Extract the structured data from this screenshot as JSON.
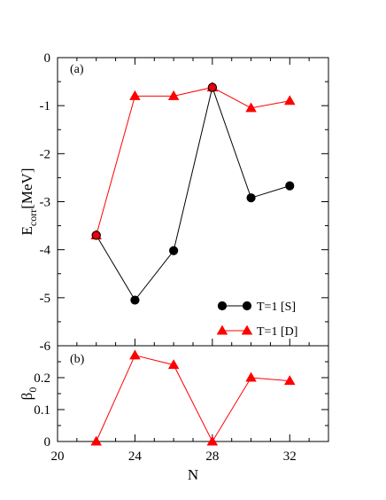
{
  "chart_data": [
    {
      "type": "line",
      "panel_label": "(a)",
      "ylabel_main": "E",
      "ylabel_sub": "corr",
      "ylabel_unit": "[MeV]",
      "xlim": [
        20,
        34
      ],
      "ylim": [
        -6,
        0
      ],
      "yticks": [
        "0",
        "-1",
        "-2",
        "-3",
        "-4",
        "-5",
        "-6"
      ],
      "series": [
        {
          "name": "T=1 [S]",
          "color": "#000000",
          "marker": "circle",
          "x": [
            22,
            24,
            26,
            28,
            30,
            32
          ],
          "y": [
            -3.7,
            -5.05,
            -4.02,
            -0.62,
            -2.92,
            -2.67
          ]
        },
        {
          "name": "T=1 [D]",
          "color": "#ff0000",
          "marker": "triangle",
          "x": [
            22,
            24,
            26,
            28,
            30,
            32
          ],
          "y": [
            -3.7,
            -0.8,
            -0.8,
            -0.62,
            -1.05,
            -0.9
          ]
        }
      ],
      "overlay_points": [
        {
          "x": 22,
          "y": -3.7,
          "fill": "#e8000b",
          "stroke": "#000000"
        },
        {
          "x": 28,
          "y": -0.62,
          "fill": "#e8000b",
          "stroke": "#000000"
        }
      ],
      "legend_position": "bottom-right"
    },
    {
      "type": "line",
      "panel_label": "(b)",
      "ylabel_main": "β",
      "ylabel_sub": "0",
      "xlabel": "N",
      "xlim": [
        20,
        34
      ],
      "ylim": [
        0,
        0.3
      ],
      "xticks": [
        "20",
        "24",
        "28",
        "32"
      ],
      "yticks": [
        "0",
        "0.1",
        "0.2"
      ],
      "series": [
        {
          "name": "",
          "color": "#ff0000",
          "marker": "triangle",
          "x": [
            22,
            24,
            26,
            28,
            30,
            32
          ],
          "y": [
            0,
            0.27,
            0.24,
            0,
            0.2,
            0.19
          ]
        }
      ]
    }
  ]
}
